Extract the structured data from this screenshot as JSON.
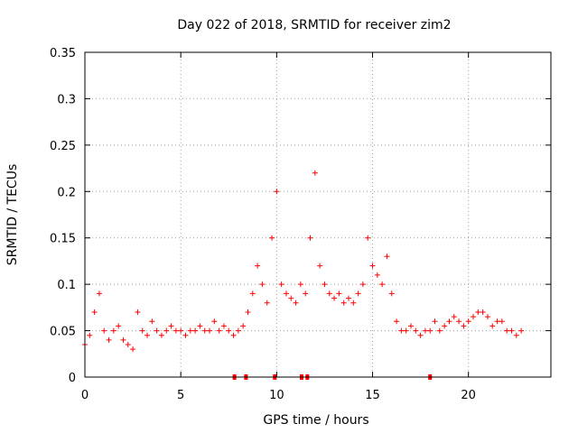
{
  "chart_data": {
    "type": "scatter",
    "title": "Day 022 of 2018, SRMTID for receiver zim2",
    "xlabel": "GPS time / hours",
    "ylabel": "SRMTID / TECUs",
    "xlim": [
      0,
      24.3
    ],
    "ylim": [
      0,
      0.35
    ],
    "xticks": [
      0,
      5,
      10,
      15,
      20
    ],
    "xtick_labels": [
      "0",
      "5",
      "10",
      "15",
      "20"
    ],
    "yticks": [
      0,
      0.05,
      0.1,
      0.15,
      0.2,
      0.25,
      0.3,
      0.35
    ],
    "ytick_labels": [
      "0",
      "0.05",
      "0.1",
      "0.15",
      "0.2",
      "0.25",
      "0.3",
      "0.35"
    ],
    "grid": true,
    "marker": "+",
    "color": "#ff0000",
    "series": [
      {
        "name": "SRMTID",
        "x": [
          0.0,
          0.25,
          0.5,
          0.75,
          1.0,
          1.25,
          1.5,
          1.75,
          2.0,
          2.25,
          2.5,
          2.75,
          3.0,
          3.25,
          3.5,
          3.75,
          4.0,
          4.25,
          4.5,
          4.75,
          5.0,
          5.25,
          5.5,
          5.75,
          6.0,
          6.25,
          6.5,
          6.75,
          7.0,
          7.25,
          7.5,
          7.75,
          8.0,
          8.25,
          8.5,
          8.75,
          9.0,
          9.25,
          9.5,
          9.75,
          10.0,
          10.25,
          10.5,
          10.75,
          11.0,
          11.25,
          11.5,
          11.75,
          12.0,
          12.25,
          12.5,
          12.75,
          13.0,
          13.25,
          13.5,
          13.75,
          14.0,
          14.25,
          14.5,
          14.75,
          15.0,
          15.25,
          15.5,
          15.75,
          16.0,
          16.25,
          16.5,
          16.75,
          17.0,
          17.25,
          17.5,
          17.75,
          18.0,
          18.25,
          18.5,
          18.75,
          19.0,
          19.25,
          19.5,
          19.75,
          20.0,
          20.25,
          20.5,
          20.75,
          21.0,
          21.25,
          21.5,
          21.75,
          22.0,
          22.25,
          22.5,
          22.75
        ],
        "y": [
          0.035,
          0.045,
          0.07,
          0.09,
          0.05,
          0.04,
          0.05,
          0.055,
          0.04,
          0.035,
          0.03,
          0.07,
          0.05,
          0.045,
          0.06,
          0.05,
          0.045,
          0.05,
          0.055,
          0.05,
          0.05,
          0.045,
          0.05,
          0.05,
          0.055,
          0.05,
          0.05,
          0.06,
          0.05,
          0.055,
          0.05,
          0.045,
          0.05,
          0.055,
          0.07,
          0.09,
          0.12,
          0.1,
          0.08,
          0.15,
          0.2,
          0.1,
          0.09,
          0.085,
          0.08,
          0.1,
          0.09,
          0.15,
          0.22,
          0.12,
          0.1,
          0.09,
          0.085,
          0.09,
          0.08,
          0.085,
          0.08,
          0.09,
          0.1,
          0.15,
          0.12,
          0.11,
          0.1,
          0.13,
          0.09,
          0.06,
          0.05,
          0.05,
          0.055,
          0.05,
          0.045,
          0.05,
          0.05,
          0.06,
          0.05,
          0.055,
          0.06,
          0.065,
          0.06,
          0.055,
          0.06,
          0.065,
          0.07,
          0.07,
          0.065,
          0.055,
          0.06,
          0.06,
          0.05,
          0.05,
          0.045,
          0.05
        ]
      }
    ],
    "bottom_markers_x": [
      7.8,
      8.4,
      9.9,
      11.3,
      11.6,
      18.0
    ]
  }
}
